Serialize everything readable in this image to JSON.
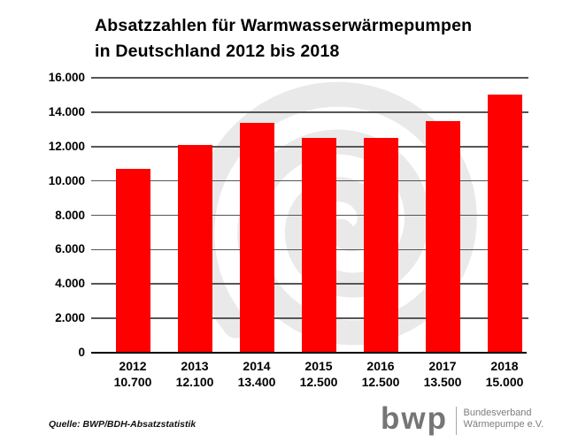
{
  "title": {
    "line1": "Absatzzahlen für Warmwasserwärmepumpen",
    "line2": "in Deutschland 2012 bis 2018"
  },
  "source_note": "Quelle: BWP/BDH-Absatzstatistik",
  "logo": {
    "abbr": "bwp",
    "org_line1": "Bundesverband",
    "org_line2": "Wärmepumpe e.V."
  },
  "colors": {
    "bar": "#ff0000",
    "gridline": "#565656",
    "axis_text": "#000000",
    "watermark": "#e9e9e9",
    "logo_gray": "#757575"
  },
  "chart_data": {
    "type": "bar",
    "title": "Absatzzahlen für Warmwasserwärmepumpen in Deutschland 2012 bis 2018",
    "categories": [
      "2012",
      "2013",
      "2014",
      "2015",
      "2016",
      "2017",
      "2018"
    ],
    "values": [
      10700,
      12100,
      13400,
      12500,
      12500,
      13500,
      15000
    ],
    "value_labels": [
      "10.700",
      "12.100",
      "13.400",
      "12.500",
      "12.500",
      "13.500",
      "15.000"
    ],
    "xlabel": "",
    "ylabel": "",
    "ylim": [
      0,
      16000
    ],
    "ytick_interval": 2000,
    "ytick_labels": [
      "0",
      "2.000",
      "4.000",
      "6.000",
      "8.000",
      "10.000",
      "12.000",
      "14.000",
      "16.000"
    ],
    "grid": true,
    "legend": false,
    "bar_color": "#ff0000",
    "background_watermark": "bwp-spiral",
    "source": "Quelle: BWP/BDH-Absatzstatistik"
  }
}
